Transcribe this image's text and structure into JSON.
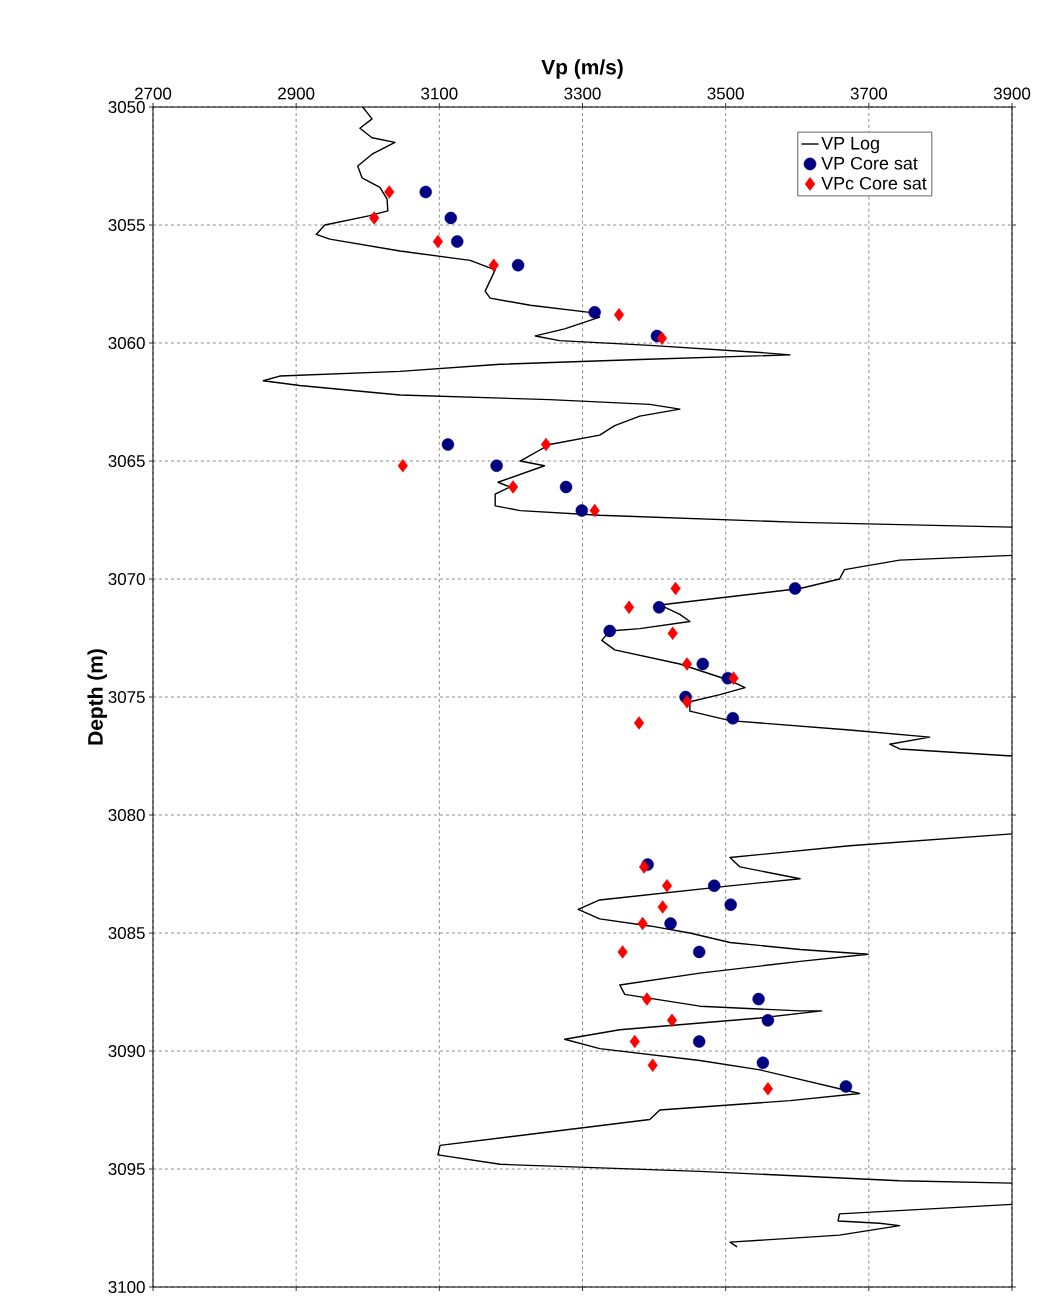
{
  "chart_data": {
    "type": "scatter",
    "xlabel": "Vp (m/s)",
    "ylabel": "Depth (m)",
    "xlim": [
      2700,
      3900
    ],
    "ylim": [
      3100,
      3050
    ],
    "xticks": [
      2700,
      2900,
      3100,
      3300,
      3500,
      3700,
      3900
    ],
    "yticks": [
      3050,
      3055,
      3060,
      3065,
      3070,
      3075,
      3080,
      3085,
      3090,
      3095,
      3100
    ],
    "grid": true,
    "legend": "top right",
    "series": [
      {
        "name": "VP Log",
        "type": "line",
        "color": "#000000",
        "marker": "none",
        "line_style": "solid",
        "x": [
          2993,
          3006,
          2989,
          3006,
          3038,
          3006,
          2986,
          2992,
          3017,
          3027,
          3028,
          3003,
          2940,
          2928,
          2947,
          3045,
          3143,
          3178,
          3164,
          3171,
          3227,
          3310,
          3324,
          3275,
          3234,
          3268,
          3394,
          3548,
          3590,
          3380,
          3185,
          3045,
          2877,
          2854,
          2905,
          3045,
          3254,
          3394,
          3436,
          3380,
          3345,
          3324,
          3254,
          3213,
          3247,
          3182,
          3199,
          3178,
          3178,
          3213,
          3324,
          3604,
          3900,
          null,
          3900,
          3743,
          3666,
          3659,
          3604,
          3464,
          3408,
          3436,
          3450,
          3380,
          3338,
          3327,
          3345,
          3436,
          3506,
          3527,
          3492,
          3450,
          3450,
          3506,
          3673,
          3785,
          3729,
          3743,
          3900,
          null,
          3900,
          3673,
          3506,
          3520,
          3604,
          3506,
          3324,
          3294,
          3324,
          3394,
          3450,
          3506,
          3604,
          3699,
          3604,
          3464,
          3352,
          3359,
          3464,
          3604,
          3634,
          3548,
          3352,
          3275,
          3324,
          3464,
          3548,
          3687,
          3590,
          3408,
          3394,
          3101,
          3098,
          3185,
          3464,
          3743,
          3900,
          null,
          3900,
          3659,
          3657,
          3715,
          3743,
          3659,
          3506,
          3516
        ],
        "values": [
          3050.0,
          3050.5,
          3050.9,
          3051.3,
          3051.5,
          3052.0,
          3052.5,
          3053.0,
          3053.4,
          3053.9,
          3054.4,
          3054.6,
          3055.0,
          3055.4,
          3055.6,
          3056.1,
          3056.5,
          3056.9,
          3057.8,
          3058.1,
          3058.4,
          3058.7,
          3058.9,
          3059.4,
          3059.7,
          3059.9,
          3060.1,
          3060.4,
          3060.5,
          3060.7,
          3060.9,
          3061.2,
          3061.4,
          3061.6,
          3061.8,
          3062.2,
          3062.4,
          3062.6,
          3062.8,
          3063.1,
          3063.5,
          3063.9,
          3064.3,
          3065.0,
          3065.2,
          3065.9,
          3066.1,
          3066.4,
          3066.9,
          3067.1,
          3067.3,
          3067.6,
          3067.8,
          null,
          3069.0,
          3069.2,
          3069.6,
          3070.0,
          3070.4,
          3070.9,
          3071.1,
          3071.5,
          3071.8,
          3072.1,
          3072.2,
          3072.6,
          3073.0,
          3073.6,
          3074.3,
          3074.6,
          3074.9,
          3075.2,
          3075.6,
          3076.0,
          3076.4,
          3076.7,
          3077.0,
          3077.2,
          3077.5,
          null,
          3080.8,
          3081.3,
          3081.8,
          3082.2,
          3082.7,
          3083.0,
          3083.6,
          3084.0,
          3084.4,
          3084.7,
          3085.0,
          3085.4,
          3085.7,
          3085.9,
          3086.2,
          3086.7,
          3087.2,
          3087.6,
          3088.1,
          3088.3,
          3088.3,
          3088.6,
          3089.1,
          3089.5,
          3089.9,
          3090.4,
          3090.8,
          3091.8,
          3092.1,
          3092.5,
          3092.9,
          3094.0,
          3094.4,
          3094.8,
          3095.1,
          3095.5,
          3095.6,
          null,
          3096.5,
          3096.9,
          3097.2,
          3097.3,
          3097.4,
          3097.8,
          3098.1,
          3098.3
        ]
      },
      {
        "name": "VP Core sat",
        "color": "#000080",
        "marker": "circle",
        "x": [
          3081,
          3116,
          3125,
          3210,
          3317,
          3404,
          3112,
          3180,
          3277,
          3299,
          3597,
          3407,
          3338,
          3468,
          3503,
          3444,
          3510,
          3391,
          3484,
          3507,
          3423,
          3463,
          3546,
          3559,
          3463,
          3552,
          3668
        ],
        "values": [
          3053.6,
          3054.7,
          3055.7,
          3056.7,
          3058.7,
          3059.7,
          3064.3,
          3065.2,
          3066.1,
          3067.1,
          3070.4,
          3071.2,
          3072.2,
          3073.6,
          3074.2,
          3075.0,
          3075.9,
          3082.1,
          3083.0,
          3083.8,
          3084.6,
          3085.8,
          3087.8,
          3088.7,
          3089.6,
          3090.5,
          3091.5
        ]
      },
      {
        "name": "VPc Core sat",
        "color": "#ff0000",
        "marker": "diamond",
        "x": [
          3030,
          3009,
          3098,
          3176,
          3351,
          3411,
          3249,
          3049,
          3203,
          3317,
          3430,
          3365,
          3426,
          3446,
          3511,
          3446,
          3379,
          3386,
          3418,
          3412,
          3384,
          3356,
          3390,
          3425,
          3373,
          3398,
          3559
        ],
        "values": [
          3053.6,
          3054.7,
          3055.7,
          3056.7,
          3058.8,
          3059.8,
          3064.3,
          3065.2,
          3066.1,
          3067.1,
          3070.4,
          3071.2,
          3072.3,
          3073.6,
          3074.2,
          3075.2,
          3076.1,
          3082.2,
          3083.0,
          3083.9,
          3084.6,
          3085.8,
          3087.8,
          3088.7,
          3089.6,
          3090.6,
          3091.6
        ]
      }
    ]
  }
}
